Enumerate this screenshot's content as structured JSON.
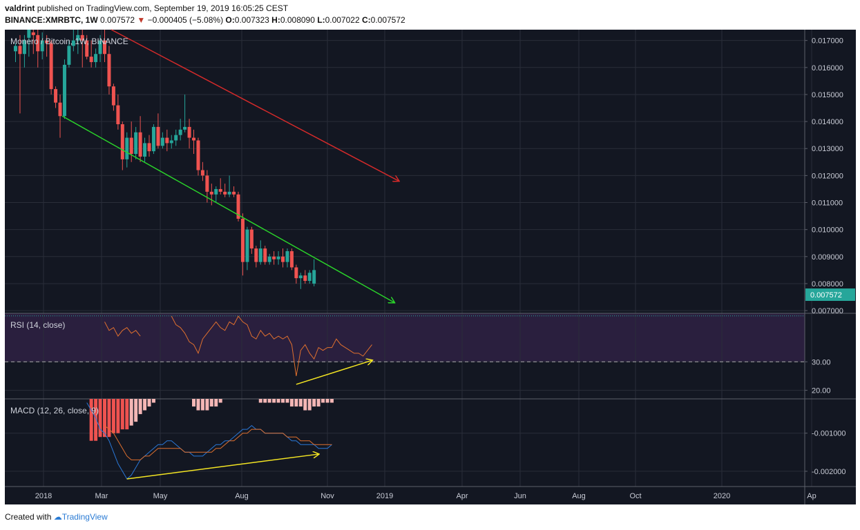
{
  "header": {
    "author": "valdrint",
    "published": "published on TradingView.com, September 19, 2019 16:05:25 CEST",
    "symbol": "BINANCE:XMRBTC, 1W",
    "last": "0.007572",
    "change": "−0.000405 (−5.08%)",
    "o_label": "O:",
    "o": "0.007323",
    "h_label": "H:",
    "h": "0.008090",
    "l_label": "L:",
    "l": "0.007022",
    "c_label": "C:",
    "c": "0.007572"
  },
  "footer": {
    "created": "Created with",
    "brand": "TradingView"
  },
  "colors": {
    "background": "#131722",
    "up": "#26a69a",
    "down": "#ef5350",
    "rsi_band": "#2a1f3e",
    "rsi_line": "#e0702e",
    "macd_line": "#2a78d8",
    "signal_line": "#e0702e",
    "upper_trend": "#d42a2a",
    "lower_trend": "#2ad42a",
    "divergence": "#f5e622",
    "last_price_tag": "#26a69a"
  },
  "chart_data": [
    {
      "type": "candlestick",
      "title": "Monero / Bitcoin, 1W, BINANCE",
      "x_axis": [
        "2018",
        "Mar",
        "May",
        "Aug",
        "Nov",
        "2019",
        "Apr",
        "Jun",
        "Aug",
        "Oct",
        "2020",
        "Ap"
      ],
      "y_ticks": [
        "0.017000",
        "0.016000",
        "0.015000",
        "0.014000",
        "0.013000",
        "0.012000",
        "0.011000",
        "0.010000",
        "0.009000",
        "0.008000",
        "0.007000"
      ],
      "ylim": [
        0.0069,
        0.0174
      ],
      "last_price": "0.007572",
      "candles_ohlc": [
        [
          0.0166,
          0.0169,
          0.0162,
          0.0168
        ],
        [
          0.0168,
          0.0172,
          0.0143,
          0.0165
        ],
        [
          0.0165,
          0.0172,
          0.016,
          0.017
        ],
        [
          0.0171,
          0.0174,
          0.0164,
          0.0174
        ],
        [
          0.0173,
          0.0175,
          0.0165,
          0.0172
        ],
        [
          0.0172,
          0.0174,
          0.016,
          0.0166
        ],
        [
          0.0166,
          0.0173,
          0.0163,
          0.017
        ],
        [
          0.017,
          0.0172,
          0.0164,
          0.0169
        ],
        [
          0.0169,
          0.017,
          0.015,
          0.0152
        ],
        [
          0.0152,
          0.0153,
          0.0145,
          0.0147
        ],
        [
          0.0147,
          0.015,
          0.0134,
          0.0142
        ],
        [
          0.0142,
          0.0163,
          0.0141,
          0.0161
        ],
        [
          0.0161,
          0.017,
          0.016,
          0.0168
        ],
        [
          0.0168,
          0.0174,
          0.0166,
          0.017
        ],
        [
          0.017,
          0.0174,
          0.0165,
          0.0172
        ],
        [
          0.0172,
          0.0174,
          0.016,
          0.017
        ],
        [
          0.017,
          0.0172,
          0.0163,
          0.0164
        ],
        [
          0.0164,
          0.017,
          0.016,
          0.0162
        ],
        [
          0.0162,
          0.0167,
          0.016,
          0.0165
        ],
        [
          0.0165,
          0.0172,
          0.0162,
          0.017
        ],
        [
          0.017,
          0.0174,
          0.0162,
          0.0165
        ],
        [
          0.0165,
          0.0168,
          0.015,
          0.0153
        ],
        [
          0.0153,
          0.0154,
          0.0144,
          0.0146
        ],
        [
          0.0146,
          0.015,
          0.0137,
          0.0139
        ],
        [
          0.0139,
          0.014,
          0.0122,
          0.0126
        ],
        [
          0.0126,
          0.0136,
          0.0123,
          0.0134
        ],
        [
          0.0134,
          0.014,
          0.0125,
          0.0128
        ],
        [
          0.0128,
          0.0138,
          0.0126,
          0.0136
        ],
        [
          0.0136,
          0.0142,
          0.0125,
          0.0127
        ],
        [
          0.0127,
          0.0134,
          0.0125,
          0.0132
        ],
        [
          0.0132,
          0.0135,
          0.0127,
          0.0129
        ],
        [
          0.0129,
          0.0139,
          0.0128,
          0.0138
        ],
        [
          0.0138,
          0.0143,
          0.013,
          0.0131
        ],
        [
          0.0131,
          0.0136,
          0.013,
          0.0134
        ],
        [
          0.0134,
          0.0137,
          0.0129,
          0.0132
        ],
        [
          0.0132,
          0.0135,
          0.013,
          0.0133
        ],
        [
          0.0133,
          0.0137,
          0.0131,
          0.0135
        ],
        [
          0.0135,
          0.0141,
          0.0133,
          0.0137
        ],
        [
          0.0137,
          0.015,
          0.0136,
          0.0138
        ],
        [
          0.0138,
          0.0141,
          0.013,
          0.0134
        ],
        [
          0.0134,
          0.0137,
          0.0128,
          0.0133
        ],
        [
          0.0133,
          0.0134,
          0.012,
          0.0122
        ],
        [
          0.0122,
          0.0125,
          0.0118,
          0.012
        ],
        [
          0.012,
          0.0122,
          0.011,
          0.0114
        ],
        [
          0.0114,
          0.0117,
          0.0109,
          0.0113
        ],
        [
          0.0113,
          0.0116,
          0.011,
          0.0115
        ],
        [
          0.0115,
          0.0119,
          0.0113,
          0.0114
        ],
        [
          0.0114,
          0.0117,
          0.0112,
          0.0113
        ],
        [
          0.0113,
          0.012,
          0.0112,
          0.0114
        ],
        [
          0.0114,
          0.0116,
          0.0112,
          0.0113
        ],
        [
          0.0113,
          0.0114,
          0.0103,
          0.0104
        ],
        [
          0.0104,
          0.0106,
          0.0083,
          0.0088
        ],
        [
          0.0088,
          0.0101,
          0.0085,
          0.01
        ],
        [
          0.01,
          0.0101,
          0.0091,
          0.0093
        ],
        [
          0.0093,
          0.0094,
          0.0086,
          0.0088
        ],
        [
          0.0088,
          0.0096,
          0.0087,
          0.0093
        ],
        [
          0.0093,
          0.0094,
          0.0087,
          0.0088
        ],
        [
          0.0088,
          0.0091,
          0.0087,
          0.009
        ],
        [
          0.009,
          0.0092,
          0.0087,
          0.0089
        ],
        [
          0.0089,
          0.0092,
          0.0087,
          0.009
        ],
        [
          0.009,
          0.0093,
          0.0086,
          0.0088
        ],
        [
          0.0088,
          0.0093,
          0.0086,
          0.0092
        ],
        [
          0.0092,
          0.0093,
          0.0085,
          0.0086
        ],
        [
          0.0086,
          0.0087,
          0.008,
          0.0082
        ],
        [
          0.0082,
          0.0084,
          0.0078,
          0.0083
        ],
        [
          0.0083,
          0.0085,
          0.008,
          0.0081
        ],
        [
          0.0081,
          0.0085,
          0.008,
          0.0084
        ],
        [
          0.008,
          0.0089,
          0.0079,
          0.0085
        ]
      ],
      "trend_lines": [
        {
          "name": "upper",
          "from": [
            21.5,
            0.0174
          ],
          "to": [
            86,
            0.0118
          ]
        },
        {
          "name": "lower",
          "from": [
            10.5,
            0.0142
          ],
          "to": [
            85,
            0.0073
          ]
        }
      ]
    },
    {
      "type": "line",
      "title": "RSI (14, close)",
      "y_ticks": [
        "30.00",
        "20.00"
      ],
      "ylim": [
        17,
        47
      ],
      "band": [
        30,
        47
      ],
      "values": [
        [
          20,
          44
        ],
        [
          21,
          41
        ],
        [
          22,
          42
        ],
        [
          23,
          39
        ],
        [
          24,
          41
        ],
        [
          25,
          42
        ],
        [
          26,
          40
        ],
        [
          27,
          41
        ],
        [
          28,
          39
        ],
        [
          35,
          46
        ],
        [
          36,
          43
        ],
        [
          37,
          42
        ],
        [
          38,
          40
        ],
        [
          39,
          37
        ],
        [
          40,
          36
        ],
        [
          41,
          33
        ],
        [
          42,
          38
        ],
        [
          43,
          40
        ],
        [
          44,
          42
        ],
        [
          45,
          44
        ],
        [
          46,
          42
        ],
        [
          47,
          41
        ],
        [
          48,
          44
        ],
        [
          49,
          43
        ],
        [
          50,
          46
        ],
        [
          51,
          44
        ],
        [
          52,
          43
        ],
        [
          53,
          39
        ],
        [
          54,
          38
        ],
        [
          55,
          41
        ],
        [
          56,
          39
        ],
        [
          57,
          40
        ],
        [
          58,
          38
        ],
        [
          59,
          39
        ],
        [
          60,
          38
        ],
        [
          61,
          39
        ],
        [
          62,
          36
        ],
        [
          63,
          25
        ],
        [
          64,
          34
        ],
        [
          65,
          36
        ],
        [
          66,
          33
        ],
        [
          67,
          31
        ],
        [
          68,
          35
        ],
        [
          69,
          34
        ],
        [
          70,
          35
        ],
        [
          71,
          35
        ],
        [
          72,
          38
        ],
        [
          73,
          36
        ],
        [
          74,
          35
        ],
        [
          75,
          34
        ],
        [
          76,
          33
        ],
        [
          77,
          33
        ],
        [
          78,
          32
        ],
        [
          79,
          34
        ],
        [
          80,
          36
        ]
      ],
      "divergence_line": {
        "from": [
          63,
          25
        ],
        "to": [
          80,
          30.5
        ]
      }
    },
    {
      "type": "line",
      "title": "MACD (12, 26, close, 9)",
      "y_ticks": [
        "-0.001000",
        "-0.002000"
      ],
      "ylim": [
        -0.0024,
        -0.0001
      ],
      "macd": [
        [
          16,
          -0.0002
        ],
        [
          17,
          -0.0004
        ],
        [
          18,
          -0.0006
        ],
        [
          19,
          -0.0009
        ],
        [
          20,
          -0.001
        ],
        [
          21,
          -0.0012
        ],
        [
          22,
          -0.0015
        ],
        [
          23,
          -0.0018
        ],
        [
          24,
          -0.002
        ],
        [
          25,
          -0.0022
        ],
        [
          26,
          -0.0021
        ],
        [
          27,
          -0.0019
        ],
        [
          28,
          -0.0017
        ],
        [
          29,
          -0.0016
        ],
        [
          30,
          -0.0015
        ],
        [
          31,
          -0.0014
        ],
        [
          32,
          -0.0013
        ],
        [
          33,
          -0.0013
        ],
        [
          34,
          -0.0012
        ],
        [
          35,
          -0.0012
        ],
        [
          36,
          -0.0013
        ],
        [
          37,
          -0.0014
        ],
        [
          38,
          -0.0015
        ],
        [
          39,
          -0.0015
        ],
        [
          40,
          -0.0016
        ],
        [
          41,
          -0.0016
        ],
        [
          42,
          -0.0016
        ],
        [
          43,
          -0.0015
        ],
        [
          44,
          -0.0014
        ],
        [
          45,
          -0.0013
        ],
        [
          46,
          -0.0013
        ],
        [
          47,
          -0.0012
        ],
        [
          48,
          -0.0012
        ],
        [
          49,
          -0.0011
        ],
        [
          50,
          -0.001
        ],
        [
          51,
          -0.0009
        ],
        [
          52,
          -0.0009
        ],
        [
          53,
          -0.0008
        ],
        [
          54,
          -0.0009
        ],
        [
          55,
          -0.0009
        ],
        [
          56,
          -0.001
        ],
        [
          57,
          -0.001
        ],
        [
          58,
          -0.001
        ],
        [
          59,
          -0.001
        ],
        [
          60,
          -0.001
        ],
        [
          61,
          -0.0011
        ],
        [
          62,
          -0.0012
        ],
        [
          63,
          -0.0012
        ],
        [
          64,
          -0.0013
        ],
        [
          65,
          -0.0013
        ],
        [
          66,
          -0.0013
        ],
        [
          67,
          -0.0013
        ],
        [
          68,
          -0.0014
        ],
        [
          69,
          -0.0014
        ],
        [
          70,
          -0.0014
        ],
        [
          71,
          -0.0013
        ]
      ],
      "signal": [
        [
          20,
          -0.0008
        ],
        [
          21,
          -0.0009
        ],
        [
          22,
          -0.001
        ],
        [
          23,
          -0.0012
        ],
        [
          24,
          -0.0014
        ],
        [
          25,
          -0.0016
        ],
        [
          26,
          -0.0017
        ],
        [
          27,
          -0.0017
        ],
        [
          28,
          -0.0017
        ],
        [
          29,
          -0.0016
        ],
        [
          30,
          -0.0016
        ],
        [
          31,
          -0.0015
        ],
        [
          32,
          -0.0014
        ],
        [
          33,
          -0.0014
        ],
        [
          34,
          -0.0014
        ],
        [
          35,
          -0.0014
        ],
        [
          36,
          -0.0014
        ],
        [
          37,
          -0.0014
        ],
        [
          38,
          -0.0015
        ],
        [
          39,
          -0.0015
        ],
        [
          40,
          -0.0015
        ],
        [
          41,
          -0.0015
        ],
        [
          42,
          -0.0015
        ],
        [
          43,
          -0.0015
        ],
        [
          44,
          -0.0015
        ],
        [
          45,
          -0.0014
        ],
        [
          46,
          -0.0014
        ],
        [
          47,
          -0.0013
        ],
        [
          48,
          -0.0012
        ],
        [
          49,
          -0.0012
        ],
        [
          50,
          -0.0011
        ],
        [
          51,
          -0.001
        ],
        [
          52,
          -0.001
        ],
        [
          53,
          -0.0009
        ],
        [
          54,
          -0.0009
        ],
        [
          55,
          -0.0009
        ],
        [
          56,
          -0.001
        ],
        [
          57,
          -0.001
        ],
        [
          58,
          -0.001
        ],
        [
          59,
          -0.001
        ],
        [
          60,
          -0.001
        ],
        [
          61,
          -0.0011
        ],
        [
          62,
          -0.0011
        ],
        [
          63,
          -0.0011
        ],
        [
          64,
          -0.0012
        ],
        [
          65,
          -0.0012
        ],
        [
          66,
          -0.0012
        ],
        [
          67,
          -0.0013
        ],
        [
          68,
          -0.0013
        ],
        [
          69,
          -0.0013
        ],
        [
          70,
          -0.0013
        ],
        [
          71,
          -0.0013
        ]
      ],
      "histogram": [
        [
          17,
          -0.0011
        ],
        [
          18,
          -0.0011
        ],
        [
          19,
          -0.001
        ],
        [
          20,
          -0.001
        ],
        [
          21,
          -0.001
        ],
        [
          22,
          -0.0009
        ],
        [
          23,
          -0.0009
        ],
        [
          24,
          -0.0008
        ],
        [
          25,
          -0.0008
        ],
        [
          26,
          -0.0007
        ],
        [
          27,
          -0.0006
        ],
        [
          28,
          -0.0004
        ],
        [
          29,
          -0.0003
        ],
        [
          30,
          -0.0002
        ],
        [
          31,
          -0.0001
        ],
        [
          40,
          -0.0002
        ],
        [
          41,
          -0.0003
        ],
        [
          42,
          -0.0003
        ],
        [
          43,
          -0.0003
        ],
        [
          44,
          -0.0002
        ],
        [
          45,
          -0.0002
        ],
        [
          46,
          -0.0001
        ],
        [
          55,
          -0.0001
        ],
        [
          56,
          -0.0001
        ],
        [
          57,
          -0.0001
        ],
        [
          58,
          -0.0001
        ],
        [
          59,
          -0.0001
        ],
        [
          60,
          -0.0001
        ],
        [
          61,
          -0.0001
        ],
        [
          62,
          -0.0002
        ],
        [
          63,
          -0.0002
        ],
        [
          64,
          -0.0002
        ],
        [
          65,
          -0.0003
        ],
        [
          66,
          -0.0003
        ],
        [
          67,
          -0.0002
        ],
        [
          68,
          -0.0002
        ],
        [
          69,
          -0.0001
        ],
        [
          70,
          -0.0001
        ],
        [
          71,
          -0.0001
        ]
      ],
      "divergence_line": {
        "from": [
          25,
          -0.0022
        ],
        "to": [
          68,
          -0.00155
        ]
      }
    }
  ]
}
